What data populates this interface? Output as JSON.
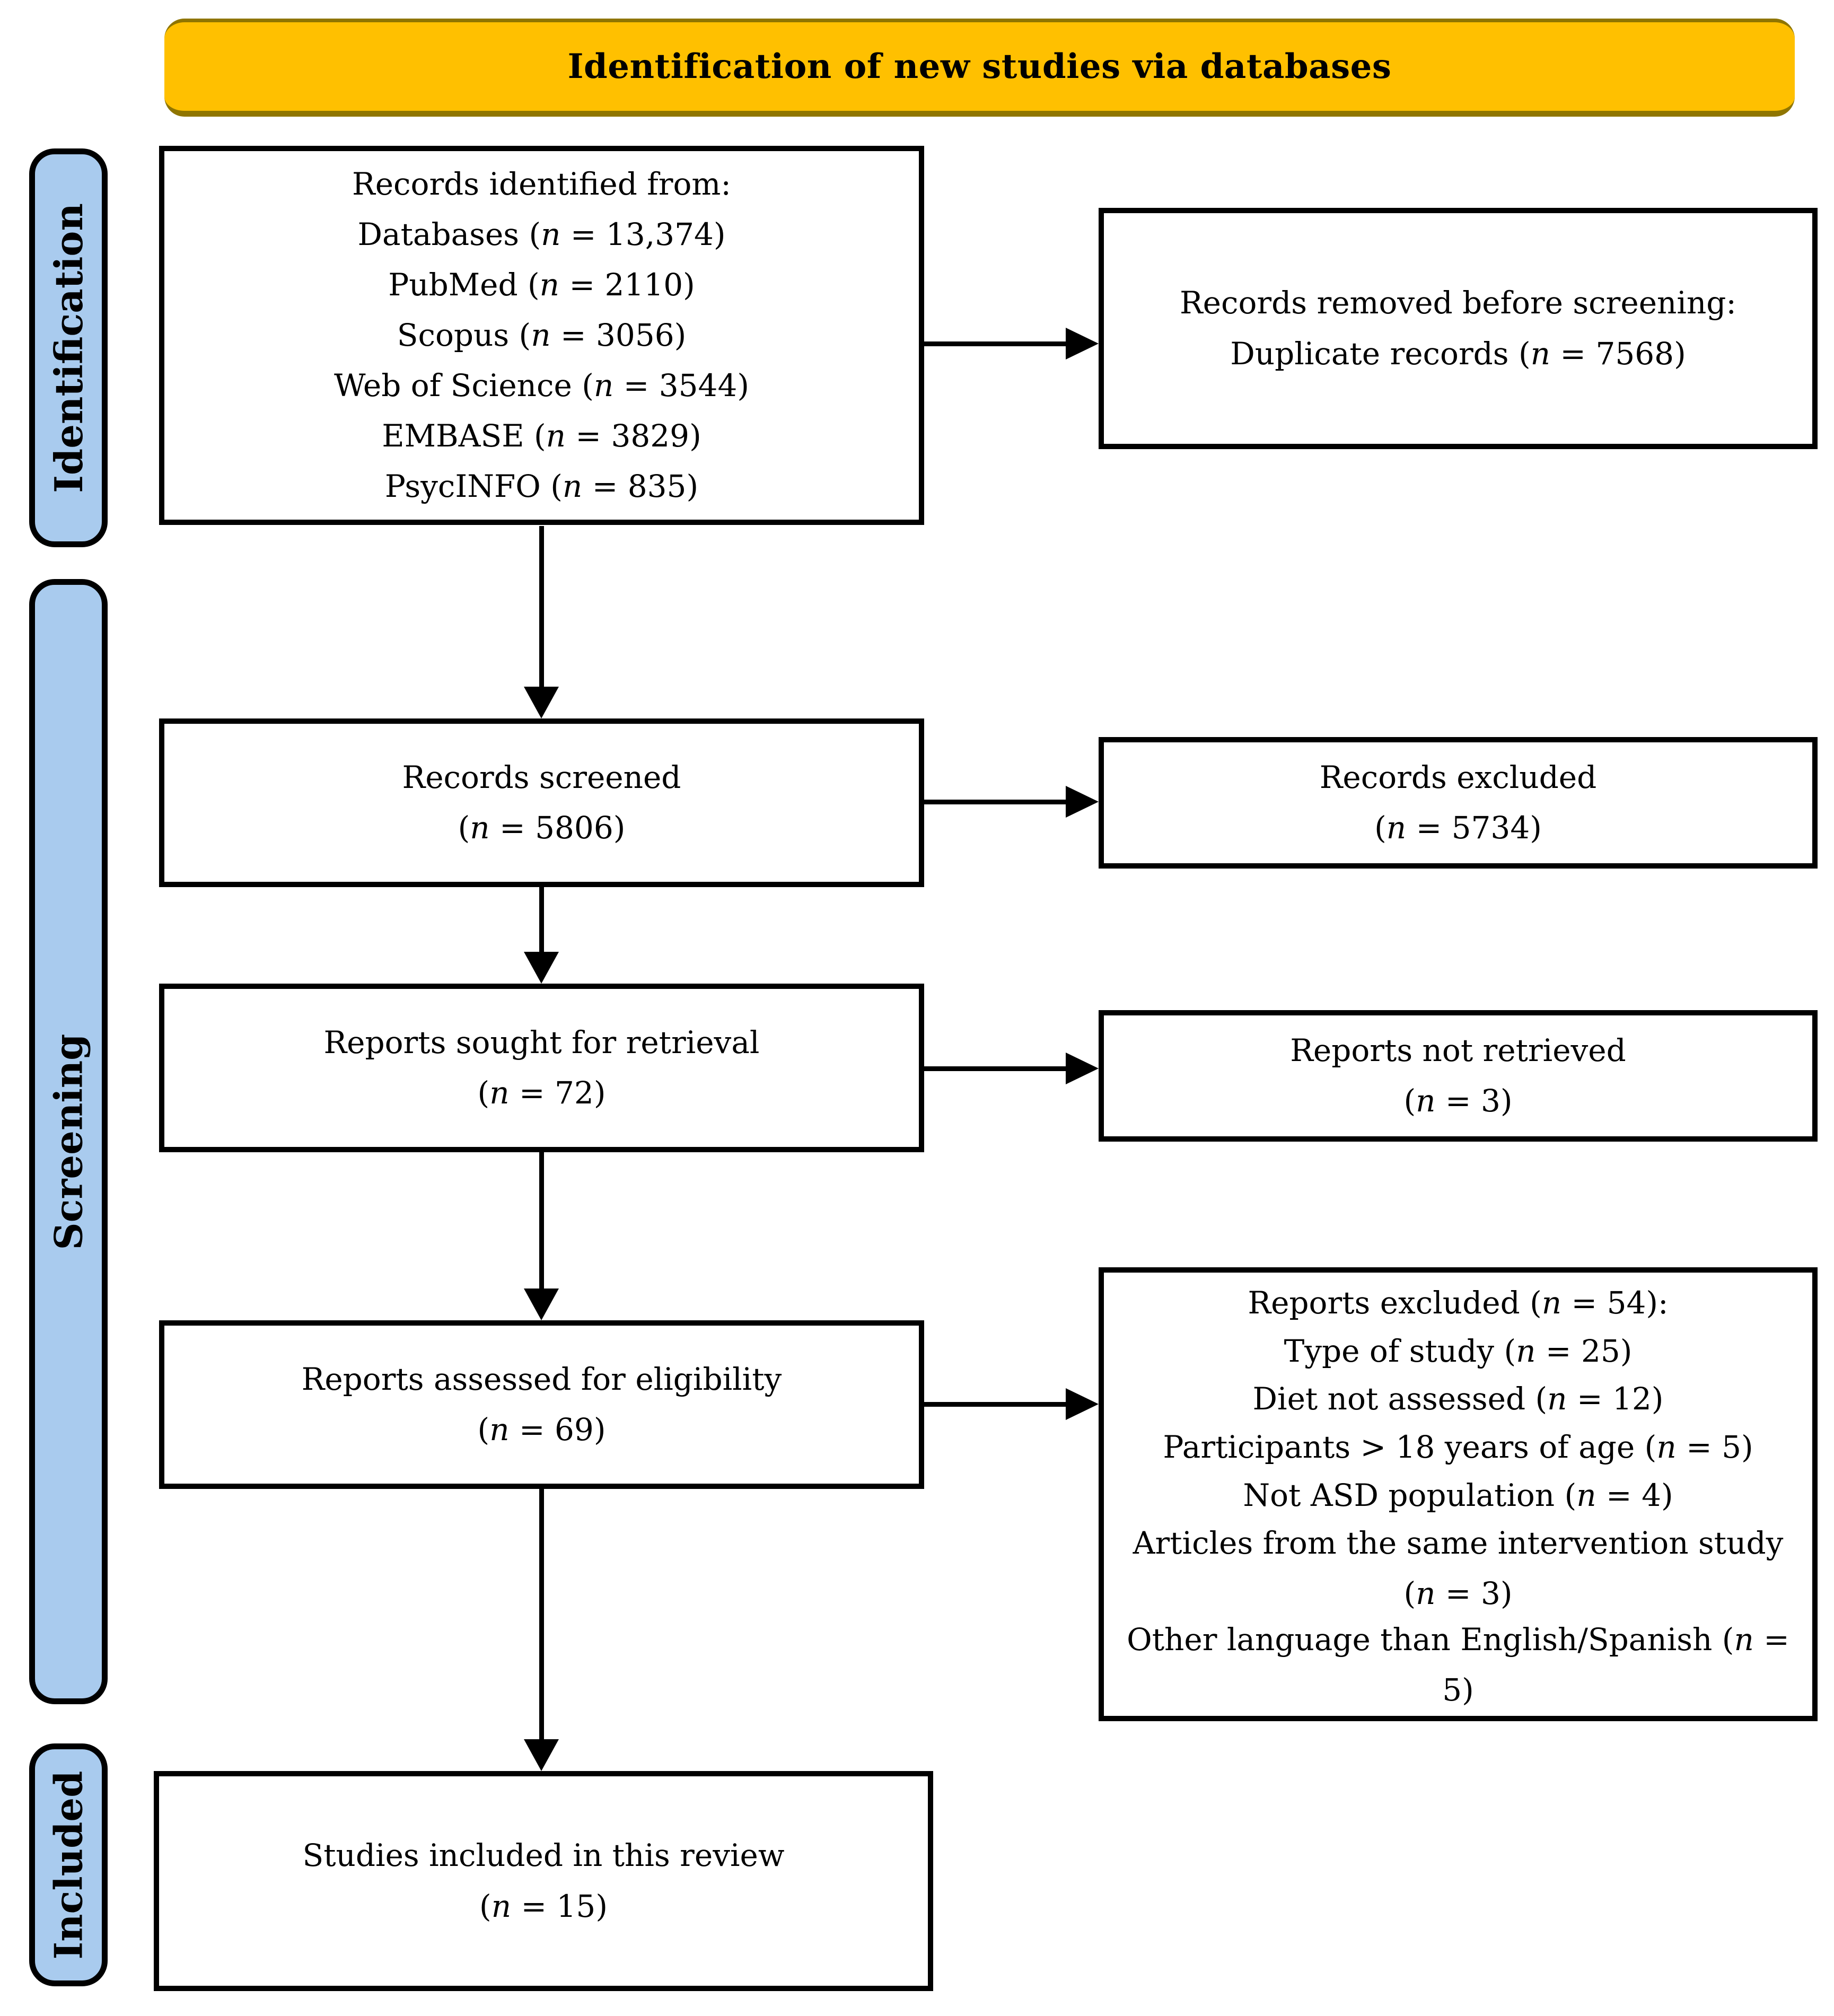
{
  "banner": {
    "label": "Identification of new studies via databases"
  },
  "colors": {
    "banner_bg": "#FFC000",
    "banner_edge": "#8F7500",
    "sidebar_bg": "#A9CBEE"
  },
  "sidebar": {
    "items": [
      {
        "label": "Identification"
      },
      {
        "label": "Screening"
      },
      {
        "label": "Included"
      }
    ]
  },
  "boxes": {
    "records_identified": {
      "lines": [
        "Records identified from:",
        "Databases (n = 13,374)",
        "PubMed (n = 2110)",
        "Scopus (n = 3056)",
        "Web of Science (n = 3544)",
        "EMBASE (n = 3829)",
        "PsycINFO (n = 835)"
      ]
    },
    "records_removed": {
      "lines": [
        "Records removed before screening:",
        "Duplicate records (n = 7568)"
      ]
    },
    "records_screened": {
      "lines": [
        "Records screened",
        "(n = 5806)"
      ]
    },
    "records_excluded": {
      "lines": [
        "Records excluded",
        "(n = 5734)"
      ]
    },
    "reports_sought": {
      "lines": [
        "Reports sought for retrieval",
        "(n = 72)"
      ]
    },
    "reports_not_retrieved": {
      "lines": [
        "Reports not retrieved",
        "(n = 3)"
      ]
    },
    "reports_assessed": {
      "lines": [
        "Reports assessed for eligibility",
        "(n = 69)"
      ]
    },
    "reports_excluded": {
      "lines": [
        "Reports excluded (n = 54):",
        "Type of study (n = 25)",
        "Diet not assessed (n = 12)",
        "Participants > 18 years of age (n = 5)",
        "Not ASD population (n = 4)",
        "Articles from the same intervention study (n = 3)",
        "Other language than English/Spanish (n = 5)"
      ]
    },
    "studies_included": {
      "lines": [
        "Studies included in this review",
        "(n = 15)"
      ]
    }
  }
}
